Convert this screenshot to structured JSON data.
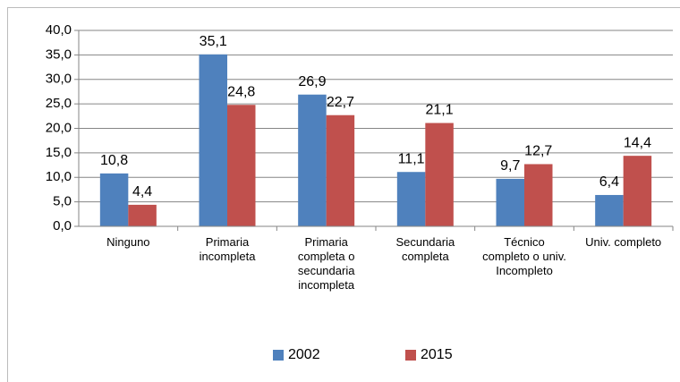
{
  "chart_data": {
    "type": "bar",
    "categories": [
      "Ninguno",
      "Primaria incompleta",
      "Primaria completa o secundaria incompleta",
      "Secundaria completa",
      "Técnico completo o univ. Incompleto",
      "Univ. completo"
    ],
    "series": [
      {
        "name": "2002",
        "color": "#4f81bd",
        "values": [
          10.8,
          35.1,
          26.9,
          11.1,
          9.7,
          6.4
        ],
        "value_labels": [
          "10,8",
          "35,1",
          "26,9",
          "11,1",
          "9,7",
          "6,4"
        ]
      },
      {
        "name": "2015",
        "color": "#c0504d",
        "values": [
          4.4,
          24.8,
          22.7,
          21.1,
          12.7,
          14.4
        ],
        "value_labels": [
          "4,4",
          "24,8",
          "22,7",
          "21,1",
          "12,7",
          "14,4"
        ]
      }
    ],
    "ylim": [
      0,
      40
    ],
    "yticks": [
      {
        "value": 0,
        "label": "0,0"
      },
      {
        "value": 5,
        "label": "5,0"
      },
      {
        "value": 10,
        "label": "10,0"
      },
      {
        "value": 15,
        "label": "15,0"
      },
      {
        "value": 20,
        "label": "20,0"
      },
      {
        "value": 25,
        "label": "25,0"
      },
      {
        "value": 30,
        "label": "30,0"
      },
      {
        "value": 35,
        "label": "35,0"
      },
      {
        "value": 40,
        "label": "40,0"
      }
    ],
    "grid": true,
    "legend": "bottom"
  }
}
